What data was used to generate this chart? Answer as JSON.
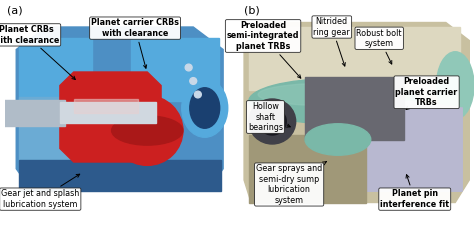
{
  "fig_width": 4.74,
  "fig_height": 2.25,
  "dpi": 100,
  "bg_color": "#ffffff",
  "panel_a_label": "(a)",
  "panel_b_label": "(b)",
  "label_fontsize": 5.8,
  "panel_label_fontsize": 8,
  "ann_a": [
    {
      "text": "Planet CRBs\nwith clearance",
      "bold": true,
      "xyt": [
        0.055,
        0.845
      ],
      "xya": [
        0.165,
        0.635
      ]
    },
    {
      "text": "Planet carrier CRBs\nwith clearance",
      "bold": true,
      "xyt": [
        0.285,
        0.875
      ],
      "xya": [
        0.31,
        0.68
      ]
    },
    {
      "text": "Gear jet and splash\nlubrication system",
      "bold": false,
      "xyt": [
        0.085,
        0.115
      ],
      "xya": [
        0.175,
        0.235
      ]
    }
  ],
  "ann_b": [
    {
      "text": "Preloaded\nsemi-integrated\nplanet TRBs",
      "bold": true,
      "xyt": [
        0.555,
        0.84
      ],
      "xya": [
        0.64,
        0.64
      ]
    },
    {
      "text": "Nitrided\nring gear",
      "bold": false,
      "xyt": [
        0.7,
        0.88
      ],
      "xya": [
        0.73,
        0.69
      ]
    },
    {
      "text": "Robust bolt\nsystem",
      "bold": false,
      "xyt": [
        0.8,
        0.83
      ],
      "xya": [
        0.83,
        0.7
      ]
    },
    {
      "text": "Preloaded\nplanet carrier\nTRBs",
      "bold": true,
      "xyt": [
        0.9,
        0.59
      ],
      "xya": [
        0.855,
        0.51
      ]
    },
    {
      "text": "Hollow\nshaft\nbearings",
      "bold": false,
      "xyt": [
        0.56,
        0.48
      ],
      "xya": [
        0.62,
        0.43
      ]
    },
    {
      "text": "Gear sprays and\nsemi-dry sump\nlubrication\nsystem",
      "bold": false,
      "xyt": [
        0.61,
        0.18
      ],
      "xya": [
        0.695,
        0.29
      ]
    },
    {
      "text": "Planet pin\ninterference fit",
      "bold": true,
      "xyt": [
        0.875,
        0.115
      ],
      "xya": [
        0.855,
        0.24
      ]
    }
  ],
  "img_a_colors": {
    "bg": "#dde8f2",
    "blue_main": "#4d8fc4",
    "blue_light": "#6babd4",
    "blue_dark": "#2d5a8c",
    "blue_bright": "#55aadd",
    "red_main": "#cc2020",
    "red_dark": "#aa1818",
    "gray_silver": "#b0bcc8",
    "white_part": "#d8e4ee"
  },
  "img_b_colors": {
    "bg": "#d0ccb0",
    "tan_main": "#c8c0a0",
    "tan_light": "#ddd8c0",
    "teal_main": "#7ab8a8",
    "teal_light": "#90c8b8",
    "lavender": "#b8b8d0",
    "dark_gray": "#686870",
    "tan_dark": "#a09878"
  }
}
